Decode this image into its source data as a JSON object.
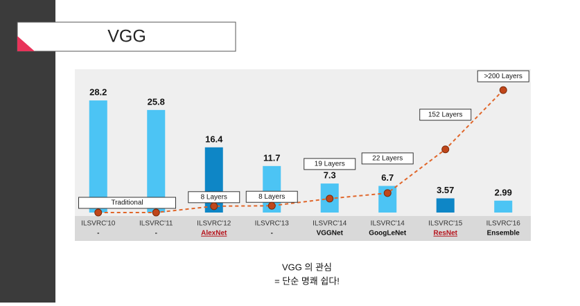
{
  "slide_title": "VGG",
  "caption": [
    "VGG 의 관심",
    "= 단순 명쾌 쉽다!"
  ],
  "chart_data": {
    "type": "bar",
    "categories": [
      "ILSVRC'10",
      "ILSVRC'11",
      "ILSVRC'12",
      "ILSVRC'13",
      "ILSVRC'14",
      "ILSVRC'14",
      "ILSVRC'15",
      "ILSVRC'16"
    ],
    "sublabels": [
      "-",
      "-",
      "AlexNet",
      "-",
      "VGGNet",
      "GoogLeNet",
      "ResNet",
      "Ensemble"
    ],
    "sublabel_colors": [
      "#222222",
      "#222222",
      "#b5121b",
      "#222222",
      "#111111",
      "#111111",
      "#b5121b",
      "#111111"
    ],
    "values": [
      28.2,
      25.8,
      16.4,
      11.7,
      7.3,
      6.7,
      3.57,
      2.99
    ],
    "colors": [
      "#4cc4f4",
      "#4cc4f4",
      "#0e86c6",
      "#4cc4f4",
      "#4cc4f4",
      "#4cc4f4",
      "#0e86c6",
      "#4cc4f4"
    ],
    "ylim": [
      0,
      31
    ],
    "depth_line": {
      "color": "#e0662a",
      "dot_color": "#c0461a",
      "values": [
        0,
        0,
        1.6,
        1.7,
        3.5,
        4.9,
        15.9,
        30.8
      ],
      "labels": [
        "Traditional",
        null,
        "8 Layers",
        "8 Layers",
        "19 Layers",
        "22 Layers",
        "152 Layers",
        ">200 Layers"
      ]
    }
  }
}
